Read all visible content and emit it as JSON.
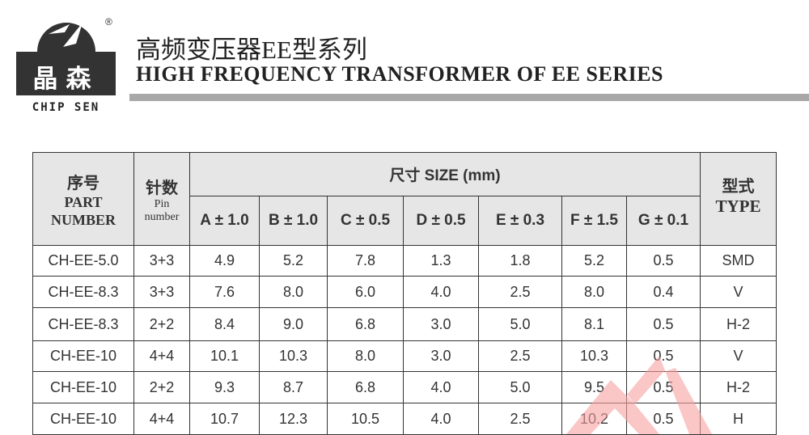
{
  "brand": {
    "logo_cn": "晶森",
    "logo_en": "CHIP SEN",
    "registered": "®"
  },
  "title": {
    "cn": "高频变压器EE型系列",
    "en": "HIGH FREQUENCY TRANSFORMER OF EE SERIES"
  },
  "table": {
    "header": {
      "part_cn": "序号",
      "part_en": "PART NUMBER",
      "pin_cn": "针数",
      "pin_en": "Pin number",
      "size": "尺寸 SIZE (mm)",
      "type_cn": "型式",
      "type_en": "TYPE",
      "dims": [
        "A ± 1.0",
        "B ± 1.0",
        "C ± 0.5",
        "D ± 0.5",
        "E ± 0.3",
        "F ± 1.5",
        "G ± 0.1"
      ]
    },
    "rows": [
      [
        "CH-EE-5.0",
        "3+3",
        "4.9",
        "5.2",
        "7.8",
        "1.3",
        "1.8",
        "5.2",
        "0.5",
        "SMD"
      ],
      [
        "CH-EE-8.3",
        "3+3",
        "7.6",
        "8.0",
        "6.0",
        "4.0",
        "2.5",
        "8.0",
        "0.4",
        "V"
      ],
      [
        "CH-EE-8.3",
        "2+2",
        "8.4",
        "9.0",
        "6.8",
        "3.0",
        "5.0",
        "8.1",
        "0.5",
        "H-2"
      ],
      [
        "CH-EE-10",
        "4+4",
        "10.1",
        "10.3",
        "8.0",
        "3.0",
        "2.5",
        "10.3",
        "0.5",
        "V"
      ],
      [
        "CH-EE-10",
        "2+2",
        "9.3",
        "8.7",
        "6.8",
        "4.0",
        "5.0",
        "9.5",
        "0.5",
        "H-2"
      ],
      [
        "CH-EE-10",
        "4+4",
        "10.7",
        "12.3",
        "10.5",
        "4.0",
        "2.5",
        "10.2",
        "0.5",
        "H"
      ]
    ]
  },
  "colors": {
    "header_bg": "#e6e6e6",
    "border": "#333333",
    "watermark": "#f7a0a0"
  }
}
